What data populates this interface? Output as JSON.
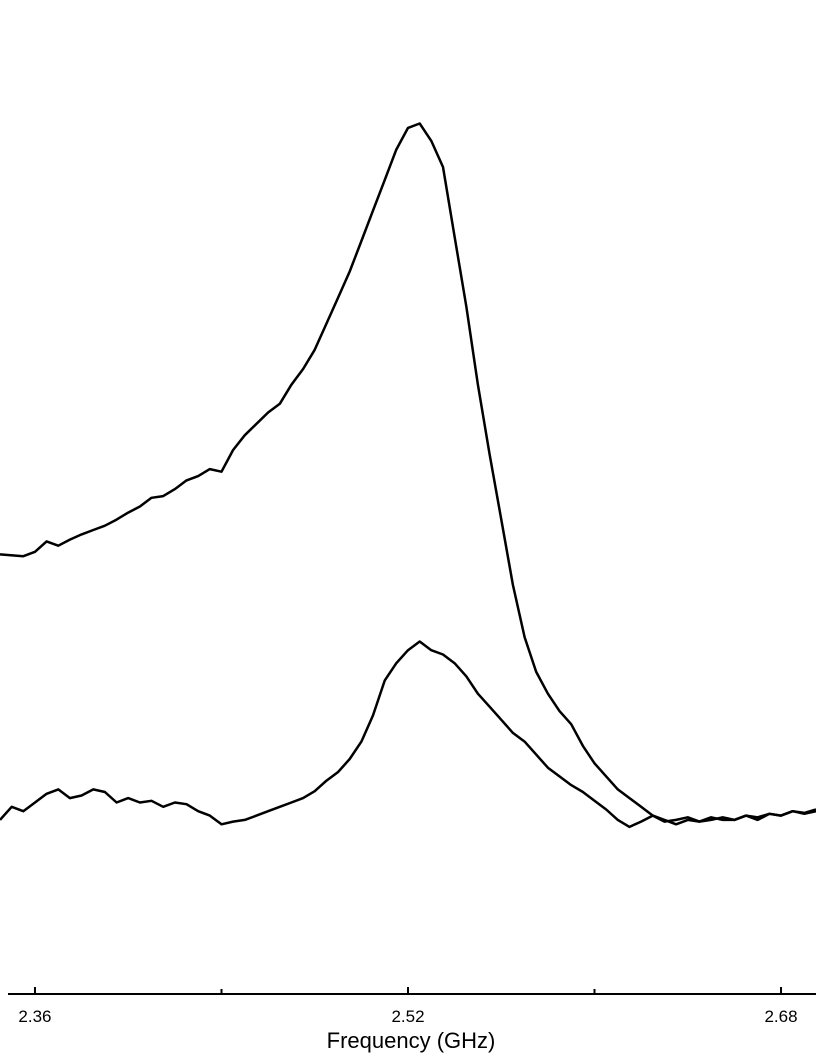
{
  "chart_data": {
    "type": "line",
    "title": "",
    "xlabel": "Frequency (GHz)",
    "ylabel": "",
    "xlim": [
      2.345,
      2.695
    ],
    "ylim": [
      0,
      1.05
    ],
    "grid": false,
    "legend": "none",
    "line_color": "#000000",
    "x_ticks_major": [
      2.36,
      2.52,
      2.68
    ],
    "x_ticks_major_labels": [
      "2.36",
      "2.52",
      "2.68"
    ],
    "x_ticks_minor": [
      2.44,
      2.6
    ],
    "series": [
      {
        "points": [
          [
            2.345,
            0.505
          ],
          [
            2.355,
            0.503
          ],
          [
            2.36,
            0.508
          ],
          [
            2.365,
            0.52
          ],
          [
            2.37,
            0.515
          ],
          [
            2.375,
            0.522
          ],
          [
            2.38,
            0.528
          ],
          [
            2.385,
            0.533
          ],
          [
            2.39,
            0.538
          ],
          [
            2.395,
            0.545
          ],
          [
            2.4,
            0.553
          ],
          [
            2.405,
            0.56
          ],
          [
            2.41,
            0.57
          ],
          [
            2.415,
            0.572
          ],
          [
            2.42,
            0.58
          ],
          [
            2.425,
            0.59
          ],
          [
            2.43,
            0.595
          ],
          [
            2.435,
            0.603
          ],
          [
            2.44,
            0.6
          ],
          [
            2.445,
            0.625
          ],
          [
            2.45,
            0.642
          ],
          [
            2.455,
            0.655
          ],
          [
            2.46,
            0.668
          ],
          [
            2.465,
            0.678
          ],
          [
            2.47,
            0.7
          ],
          [
            2.475,
            0.718
          ],
          [
            2.48,
            0.74
          ],
          [
            2.485,
            0.77
          ],
          [
            2.49,
            0.8
          ],
          [
            2.495,
            0.83
          ],
          [
            2.5,
            0.865
          ],
          [
            2.505,
            0.9
          ],
          [
            2.51,
            0.935
          ],
          [
            2.515,
            0.97
          ],
          [
            2.52,
            0.995
          ],
          [
            2.525,
            1.0
          ],
          [
            2.53,
            0.98
          ],
          [
            2.535,
            0.95
          ],
          [
            2.54,
            0.87
          ],
          [
            2.545,
            0.79
          ],
          [
            2.55,
            0.7
          ],
          [
            2.555,
            0.62
          ],
          [
            2.56,
            0.545
          ],
          [
            2.565,
            0.47
          ],
          [
            2.57,
            0.41
          ],
          [
            2.575,
            0.37
          ],
          [
            2.58,
            0.345
          ],
          [
            2.585,
            0.325
          ],
          [
            2.59,
            0.31
          ],
          [
            2.595,
            0.285
          ],
          [
            2.6,
            0.265
          ],
          [
            2.605,
            0.25
          ],
          [
            2.61,
            0.235
          ],
          [
            2.615,
            0.225
          ],
          [
            2.62,
            0.215
          ],
          [
            2.625,
            0.205
          ],
          [
            2.63,
            0.198
          ],
          [
            2.635,
            0.2
          ],
          [
            2.64,
            0.203
          ],
          [
            2.645,
            0.198
          ],
          [
            2.65,
            0.2
          ],
          [
            2.655,
            0.203
          ],
          [
            2.66,
            0.2
          ],
          [
            2.665,
            0.205
          ],
          [
            2.67,
            0.2
          ],
          [
            2.675,
            0.207
          ],
          [
            2.68,
            0.205
          ],
          [
            2.685,
            0.21
          ],
          [
            2.69,
            0.208
          ],
          [
            2.695,
            0.212
          ]
        ]
      },
      {
        "points": [
          [
            2.345,
            0.2
          ],
          [
            2.35,
            0.215
          ],
          [
            2.355,
            0.21
          ],
          [
            2.36,
            0.22
          ],
          [
            2.365,
            0.23
          ],
          [
            2.37,
            0.235
          ],
          [
            2.375,
            0.225
          ],
          [
            2.38,
            0.228
          ],
          [
            2.385,
            0.235
          ],
          [
            2.39,
            0.232
          ],
          [
            2.395,
            0.22
          ],
          [
            2.4,
            0.225
          ],
          [
            2.405,
            0.22
          ],
          [
            2.41,
            0.222
          ],
          [
            2.415,
            0.215
          ],
          [
            2.42,
            0.22
          ],
          [
            2.425,
            0.218
          ],
          [
            2.43,
            0.21
          ],
          [
            2.435,
            0.205
          ],
          [
            2.44,
            0.195
          ],
          [
            2.445,
            0.198
          ],
          [
            2.45,
            0.2
          ],
          [
            2.455,
            0.205
          ],
          [
            2.46,
            0.21
          ],
          [
            2.465,
            0.215
          ],
          [
            2.47,
            0.22
          ],
          [
            2.475,
            0.225
          ],
          [
            2.48,
            0.233
          ],
          [
            2.485,
            0.245
          ],
          [
            2.49,
            0.255
          ],
          [
            2.495,
            0.27
          ],
          [
            2.5,
            0.29
          ],
          [
            2.505,
            0.32
          ],
          [
            2.51,
            0.36
          ],
          [
            2.515,
            0.38
          ],
          [
            2.52,
            0.395
          ],
          [
            2.525,
            0.405
          ],
          [
            2.53,
            0.395
          ],
          [
            2.535,
            0.39
          ],
          [
            2.54,
            0.38
          ],
          [
            2.545,
            0.365
          ],
          [
            2.55,
            0.345
          ],
          [
            2.555,
            0.33
          ],
          [
            2.56,
            0.315
          ],
          [
            2.565,
            0.3
          ],
          [
            2.57,
            0.29
          ],
          [
            2.575,
            0.275
          ],
          [
            2.58,
            0.26
          ],
          [
            2.585,
            0.25
          ],
          [
            2.59,
            0.24
          ],
          [
            2.595,
            0.232
          ],
          [
            2.6,
            0.222
          ],
          [
            2.605,
            0.212
          ],
          [
            2.61,
            0.2
          ],
          [
            2.615,
            0.192
          ],
          [
            2.62,
            0.198
          ],
          [
            2.625,
            0.205
          ],
          [
            2.63,
            0.2
          ],
          [
            2.635,
            0.195
          ],
          [
            2.64,
            0.2
          ],
          [
            2.645,
            0.198
          ],
          [
            2.65,
            0.203
          ],
          [
            2.655,
            0.2
          ],
          [
            2.66,
            0.2
          ],
          [
            2.665,
            0.205
          ],
          [
            2.67,
            0.203
          ],
          [
            2.675,
            0.207
          ],
          [
            2.68,
            0.205
          ],
          [
            2.685,
            0.21
          ],
          [
            2.69,
            0.207
          ],
          [
            2.695,
            0.21
          ]
        ]
      }
    ]
  }
}
